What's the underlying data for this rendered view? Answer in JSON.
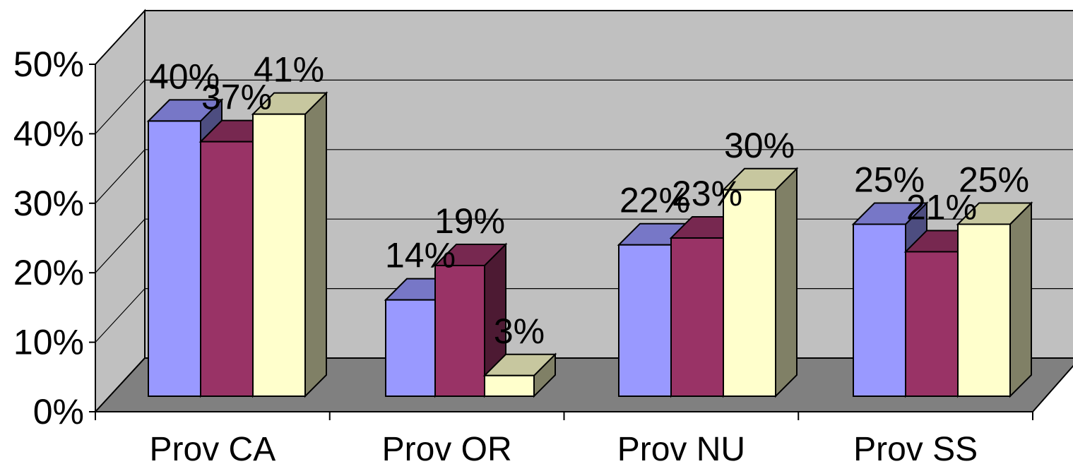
{
  "chart_data": {
    "type": "bar",
    "categories": [
      "Prov CA",
      "Prov OR",
      "Prov NU",
      "Prov SS"
    ],
    "series": [
      {
        "values": [
          40,
          14,
          22,
          25
        ],
        "color": "#9999FF"
      },
      {
        "values": [
          37,
          19,
          23,
          21
        ],
        "color": "#993366"
      },
      {
        "values": [
          41,
          3,
          30,
          25
        ],
        "color": "#FFFFCC"
      }
    ],
    "data_labels": [
      [
        "40%",
        "14%",
        "22%",
        "25%"
      ],
      [
        "37%",
        "19%",
        "23%",
        "21%"
      ],
      [
        "41%",
        "3%",
        "30%",
        "25%"
      ]
    ],
    "y_ticks": [
      "0%",
      "10%",
      "20%",
      "30%",
      "40%",
      "50%"
    ],
    "ylim": [
      0,
      50
    ],
    "y_unit": "%",
    "grid": true,
    "style": "3d-clustered-column",
    "colors": {
      "back_wall": "#C0C0C0",
      "floor": "#808080",
      "gridline": "#000000"
    }
  }
}
